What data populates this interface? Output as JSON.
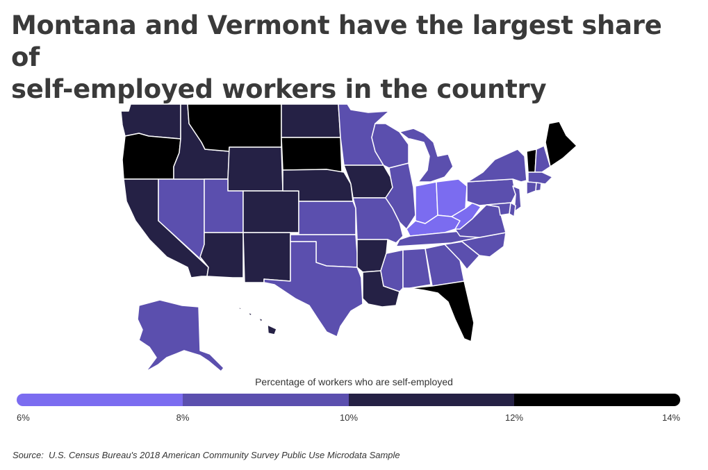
{
  "title_line1": "Montana and Vermont have the largest share of",
  "title_line2": "self-employed workers in the country",
  "legend": {
    "title": "Percentage of workers who are self-employed",
    "bins": [
      {
        "from": 6,
        "to": 8,
        "color": "#7b6cf0"
      },
      {
        "from": 8,
        "to": 10,
        "color": "#5b4fae"
      },
      {
        "from": 10,
        "to": 12,
        "color": "#252145"
      },
      {
        "from": 12,
        "to": 14,
        "color": "#000000"
      }
    ],
    "ticks": [
      "6%",
      "8%",
      "10%",
      "12%",
      "14%"
    ]
  },
  "source_label": "Source:",
  "source_text": "U.S. Census Bureau's 2018 American Community Survey Public Use Microdata Sample",
  "chart_data": {
    "type": "choropleth",
    "title": "Montana and Vermont have the largest share of self-employed workers in the country",
    "value_label": "Percentage of workers who are self-employed",
    "unit": "%",
    "bin_edges": [
      6,
      8,
      10,
      12,
      14
    ],
    "states": {
      "WA": 2,
      "OR": 3,
      "CA": 2,
      "NV": 1,
      "ID": 2,
      "MT": 3,
      "WY": 2,
      "UT": 1,
      "AZ": 2,
      "CO": 2,
      "NM": 2,
      "ND": 2,
      "SD": 3,
      "NE": 2,
      "KS": 1,
      "OK": 1,
      "TX": 1,
      "MN": 1,
      "IA": 2,
      "MO": 1,
      "AR": 2,
      "LA": 2,
      "WI": 1,
      "IL": 1,
      "MI": 1,
      "IN": 0,
      "OH": 0,
      "KY": 0,
      "TN": 1,
      "MS": 1,
      "AL": 1,
      "GA": 1,
      "FL": 3,
      "SC": 1,
      "NC": 1,
      "VA": 1,
      "WV": 0,
      "PA": 1,
      "NY": 1,
      "ME": 3,
      "VT": 3,
      "NH": 1,
      "MA": 1,
      "NJ": 1,
      "MD": 1,
      "DE": 1,
      "CT": 1,
      "RI": 1,
      "AK": 1,
      "HI": 2
    }
  }
}
